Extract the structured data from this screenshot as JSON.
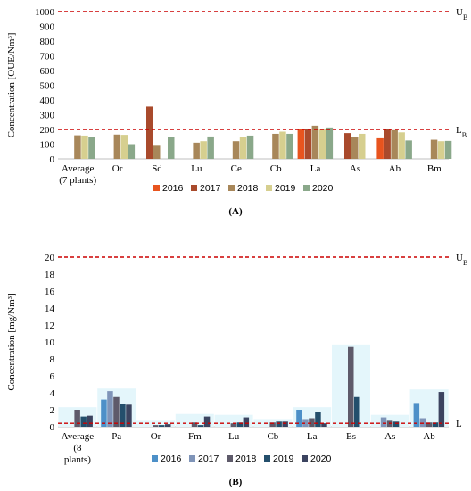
{
  "chart_data": [
    {
      "type": "bar",
      "caption": "(A)",
      "ylabel": "Concentration [OUE/Nm³]",
      "ylim": [
        0,
        1000
      ],
      "yticks": [
        0,
        100,
        200,
        300,
        400,
        500,
        600,
        700,
        800,
        900,
        1000
      ],
      "grid": false,
      "legend": "bottom",
      "categories": [
        "Average (7 plants)",
        "Or",
        "Sd",
        "Lu",
        "Ce",
        "Cb",
        "La",
        "As",
        "Ab",
        "Bm"
      ],
      "category_lines": [
        [
          "Average",
          "(7 plants)"
        ],
        [
          "Or"
        ],
        [
          "Sd"
        ],
        [
          "Lu"
        ],
        [
          "Ce"
        ],
        [
          "Cb"
        ],
        [
          "La"
        ],
        [
          "As"
        ],
        [
          "Ab"
        ],
        [
          "Bm"
        ]
      ],
      "series": [
        {
          "name": "2016",
          "color": "#e8541e",
          "values": [
            null,
            null,
            null,
            null,
            null,
            null,
            200,
            null,
            140,
            null
          ]
        },
        {
          "name": "2017",
          "color": "#a94a2c",
          "values": [
            null,
            null,
            355,
            null,
            null,
            null,
            205,
            175,
            200,
            null
          ]
        },
        {
          "name": "2018",
          "color": "#a8875a",
          "values": [
            160,
            165,
            95,
            110,
            120,
            170,
            225,
            150,
            195,
            130
          ]
        },
        {
          "name": "2019",
          "color": "#d6cf8f",
          "values": [
            158,
            163,
            null,
            120,
            150,
            185,
            200,
            170,
            180,
            120
          ]
        },
        {
          "name": "2020",
          "color": "#8aa88a",
          "values": [
            150,
            100,
            150,
            152,
            158,
            170,
            213,
            null,
            125,
            122
          ]
        }
      ],
      "reference_lines": [
        {
          "label": "U",
          "sub": "B",
          "value": 1000,
          "color": "#cc0000"
        },
        {
          "label": "L",
          "sub": "B",
          "value": 200,
          "color": "#cc0000"
        }
      ]
    },
    {
      "type": "bar",
      "caption": "(B)",
      "ylabel": "Concentration [mg/Nm³]",
      "ylim": [
        0,
        20
      ],
      "yticks": [
        0,
        2,
        4,
        6,
        8,
        10,
        12,
        14,
        16,
        18,
        20
      ],
      "grid": false,
      "legend": "bottom",
      "categories": [
        "Average (8 plants)",
        "Pa",
        "Or",
        "Fm",
        "Lu",
        "Cb",
        "La",
        "Es",
        "As",
        "Ab"
      ],
      "category_lines": [
        [
          "Average",
          "(8",
          "plants)"
        ],
        [
          "Pa"
        ],
        [
          "Or"
        ],
        [
          "Fm"
        ],
        [
          "Lu"
        ],
        [
          "Cb"
        ],
        [
          "La"
        ],
        [
          "Es"
        ],
        [
          "As"
        ],
        [
          "Ab"
        ]
      ],
      "series": [
        {
          "name": "2016",
          "color": "#4d90c8",
          "values": [
            null,
            3.2,
            null,
            null,
            null,
            null,
            2.0,
            null,
            null,
            2.8
          ]
        },
        {
          "name": "2017",
          "color": "#7f94b8",
          "values": [
            null,
            4.2,
            null,
            null,
            null,
            null,
            0.9,
            null,
            1.1,
            1.0
          ]
        },
        {
          "name": "2018",
          "color": "#5e5a6a",
          "values": [
            2.0,
            3.5,
            0.2,
            0.5,
            0.4,
            0.5,
            1.0,
            9.4,
            0.7,
            0.5
          ]
        },
        {
          "name": "2019",
          "color": "#244f6c",
          "values": [
            1.2,
            2.7,
            0.2,
            0.2,
            0.5,
            0.6,
            1.7,
            3.5,
            0.6,
            0.5
          ]
        },
        {
          "name": "2020",
          "color": "#3c4460",
          "values": [
            1.3,
            2.6,
            0.3,
            1.2,
            1.1,
            0.6,
            0.4,
            null,
            null,
            4.1
          ]
        }
      ],
      "reference_lines": [
        {
          "label": "U",
          "sub": "B",
          "value": 20,
          "color": "#cc0000"
        },
        {
          "label": "L",
          "sub": "",
          "value": 0.4,
          "color": "#cc0000"
        }
      ]
    }
  ]
}
